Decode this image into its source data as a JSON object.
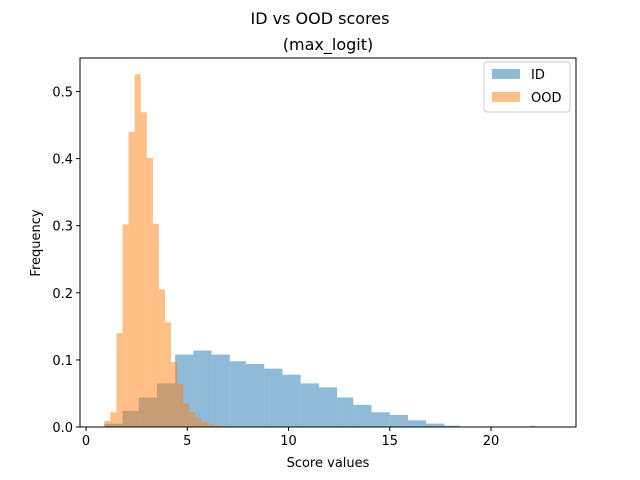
{
  "chart_data": {
    "type": "bar",
    "title": "ID vs OOD scores",
    "subtitle": "(max_logit)",
    "xlabel": "Score values",
    "ylabel": "Frequency",
    "xlim": [
      -0.3,
      24.2
    ],
    "ylim": [
      0,
      0.55
    ],
    "xticks": [
      0,
      5,
      10,
      15,
      20
    ],
    "yticks": [
      0.0,
      0.1,
      0.2,
      0.3,
      0.4,
      0.5
    ],
    "legend_position": "top-right",
    "series": [
      {
        "name": "ID",
        "color": "#1f77b4",
        "opacity": 0.5,
        "bins": [
          [
            0.9,
            1.8,
            0.005
          ],
          [
            1.8,
            2.6,
            0.024
          ],
          [
            2.6,
            3.5,
            0.044
          ],
          [
            3.5,
            4.4,
            0.065
          ],
          [
            4.4,
            5.3,
            0.108
          ],
          [
            5.3,
            6.2,
            0.114
          ],
          [
            6.2,
            7.1,
            0.108
          ],
          [
            7.1,
            7.9,
            0.098
          ],
          [
            7.9,
            8.8,
            0.094
          ],
          [
            8.8,
            9.7,
            0.087
          ],
          [
            9.7,
            10.6,
            0.078
          ],
          [
            10.6,
            11.5,
            0.065
          ],
          [
            11.5,
            12.4,
            0.059
          ],
          [
            12.4,
            13.2,
            0.044
          ],
          [
            13.2,
            14.1,
            0.033
          ],
          [
            14.1,
            15.0,
            0.022
          ],
          [
            15.0,
            15.9,
            0.018
          ],
          [
            15.9,
            16.8,
            0.01
          ],
          [
            16.8,
            17.7,
            0.005
          ],
          [
            17.7,
            18.5,
            0.002
          ]
        ]
      },
      {
        "name": "OOD",
        "color": "#ff7f0e",
        "opacity": 0.5,
        "bins": [
          [
            0.9,
            1.2,
            0.009
          ],
          [
            1.2,
            1.5,
            0.022
          ],
          [
            1.5,
            1.8,
            0.14
          ],
          [
            1.8,
            2.1,
            0.302
          ],
          [
            2.1,
            2.4,
            0.44
          ],
          [
            2.4,
            2.7,
            0.526
          ],
          [
            2.7,
            3.0,
            0.469
          ],
          [
            3.0,
            3.3,
            0.401
          ],
          [
            3.3,
            3.6,
            0.303
          ],
          [
            3.6,
            3.9,
            0.205
          ],
          [
            3.9,
            4.2,
            0.156
          ],
          [
            4.2,
            4.5,
            0.097
          ],
          [
            4.5,
            4.8,
            0.064
          ],
          [
            4.8,
            5.1,
            0.035
          ],
          [
            5.1,
            5.4,
            0.022
          ],
          [
            5.4,
            5.7,
            0.013
          ],
          [
            5.7,
            6.0,
            0.008
          ],
          [
            6.0,
            6.3,
            0.004
          ],
          [
            6.3,
            6.6,
            0.002
          ],
          [
            21.9,
            22.2,
            0.002
          ]
        ]
      }
    ]
  }
}
